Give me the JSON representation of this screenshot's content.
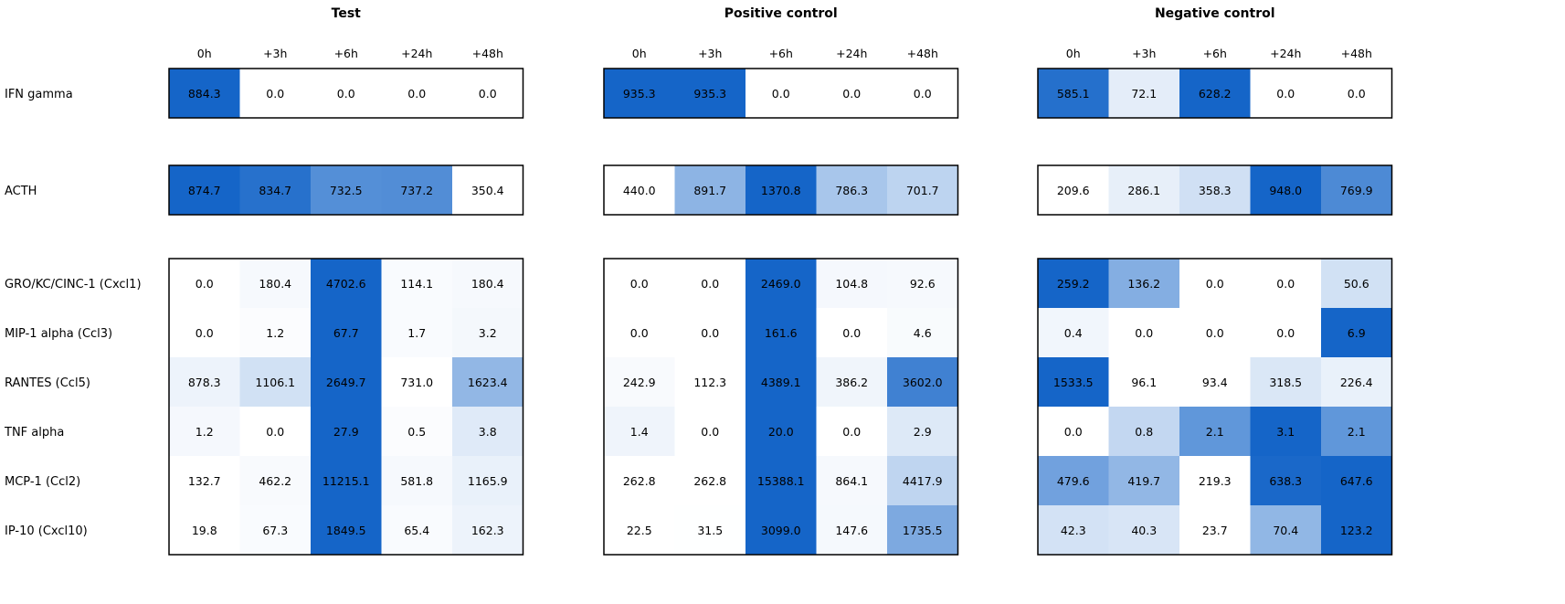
{
  "chart_data": {
    "type": "heatmap",
    "panels": [
      {
        "title": "Test"
      },
      {
        "title": "Positive control"
      },
      {
        "title": "Negative control"
      }
    ],
    "timepoints": [
      "0h",
      "+3h",
      "+6h",
      "+24h",
      "+48h"
    ],
    "groups": [
      {
        "rows": [
          {
            "label": "IFN gamma",
            "values": [
              [
                884.3,
                0.0,
                0.0,
                0.0,
                0.0
              ],
              [
                935.3,
                935.3,
                0.0,
                0.0,
                0.0
              ],
              [
                585.1,
                72.1,
                628.2,
                0.0,
                0.0
              ]
            ]
          }
        ]
      },
      {
        "rows": [
          {
            "label": "ACTH",
            "values": [
              [
                874.7,
                834.7,
                732.5,
                737.2,
                350.4
              ],
              [
                440.0,
                891.7,
                1370.8,
                786.3,
                701.7
              ],
              [
                209.6,
                286.1,
                358.3,
                948.0,
                769.9
              ]
            ]
          }
        ]
      },
      {
        "rows": [
          {
            "label": "GRO/KC/CINC-1 (Cxcl1)",
            "values": [
              [
                0.0,
                180.4,
                4702.6,
                114.1,
                180.4
              ],
              [
                0.0,
                0.0,
                2469.0,
                104.8,
                92.6
              ],
              [
                259.2,
                136.2,
                0.0,
                0.0,
                50.6
              ]
            ]
          },
          {
            "label": "MIP-1 alpha (Ccl3)",
            "values": [
              [
                0.0,
                1.2,
                67.7,
                1.7,
                3.2
              ],
              [
                0.0,
                0.0,
                161.6,
                0.0,
                4.6
              ],
              [
                0.4,
                0.0,
                0.0,
                0.0,
                6.9
              ]
            ]
          },
          {
            "label": "RANTES (Ccl5)",
            "values": [
              [
                878.3,
                1106.1,
                2649.7,
                731.0,
                1623.4
              ],
              [
                242.9,
                112.3,
                4389.1,
                386.2,
                3602.0
              ],
              [
                1533.5,
                96.1,
                93.4,
                318.5,
                226.4
              ]
            ]
          },
          {
            "label": "TNF alpha",
            "values": [
              [
                1.2,
                0.0,
                27.9,
                0.5,
                3.8
              ],
              [
                1.4,
                0.0,
                20.0,
                0.0,
                2.9
              ],
              [
                0.0,
                0.8,
                2.1,
                3.1,
                2.1
              ]
            ]
          },
          {
            "label": "MCP-1 (Ccl2)",
            "values": [
              [
                132.7,
                462.2,
                11215.1,
                581.8,
                1165.9
              ],
              [
                262.8,
                262.8,
                15388.1,
                864.1,
                4417.9
              ],
              [
                479.6,
                419.7,
                219.3,
                638.3,
                647.6
              ]
            ]
          },
          {
            "label": "IP-10 (Cxcl10)",
            "values": [
              [
                19.8,
                67.3,
                1849.5,
                65.4,
                162.3
              ],
              [
                22.5,
                31.5,
                3099.0,
                147.6,
                1735.5
              ],
              [
                42.3,
                40.3,
                23.7,
                70.4,
                123.2
              ]
            ]
          }
        ]
      }
    ],
    "colors": {
      "low": "#ffffff",
      "high": "#1565c8",
      "text": "#000000",
      "border": "#000000"
    }
  }
}
